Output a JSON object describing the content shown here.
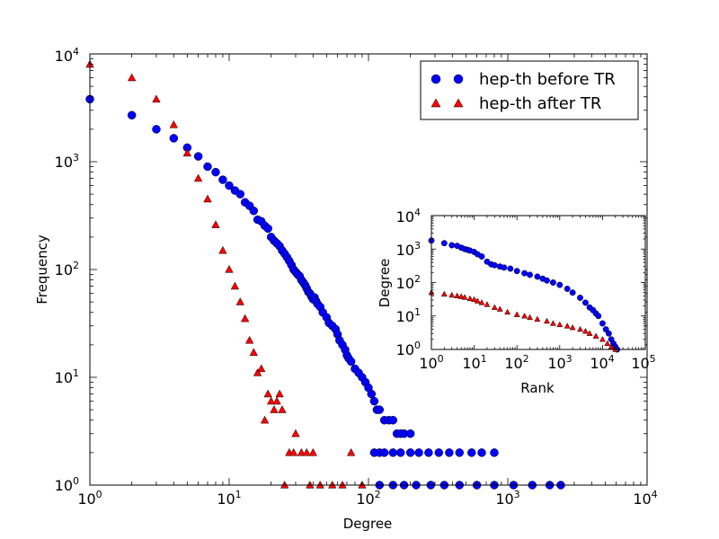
{
  "chart_data": [
    {
      "id": "main",
      "type": "scatter",
      "xscale": "log",
      "yscale": "log",
      "xlim": [
        1,
        10000
      ],
      "ylim": [
        1,
        10000
      ],
      "xlabel": "Degree",
      "ylabel": "Frequency",
      "xticks": [
        {
          "base": "10",
          "exp": "0"
        },
        {
          "base": "10",
          "exp": "1"
        },
        {
          "base": "10",
          "exp": "2"
        },
        {
          "base": "10",
          "exp": "3"
        },
        {
          "base": "10",
          "exp": "4"
        }
      ],
      "yticks": [
        {
          "base": "10",
          "exp": "0"
        },
        {
          "base": "10",
          "exp": "1"
        },
        {
          "base": "10",
          "exp": "2"
        },
        {
          "base": "10",
          "exp": "3"
        },
        {
          "base": "10",
          "exp": "4"
        }
      ],
      "legend": {
        "placement": "top-right",
        "entries": [
          "hep-th before TR",
          "hep-th after TR"
        ]
      },
      "series": [
        {
          "name": "hep-th before TR",
          "marker": "circle",
          "color": "#0000ff",
          "points": [
            [
              1,
              3800
            ],
            [
              2,
              2700
            ],
            [
              3,
              2000
            ],
            [
              4,
              1650
            ],
            [
              5,
              1350
            ],
            [
              6,
              1120
            ],
            [
              7,
              900
            ],
            [
              8,
              800
            ],
            [
              9,
              680
            ],
            [
              10,
              600
            ],
            [
              11,
              540
            ],
            [
              12,
              500
            ],
            [
              13,
              420
            ],
            [
              14,
              390
            ],
            [
              15,
              350
            ],
            [
              16,
              290
            ],
            [
              17,
              280
            ],
            [
              18,
              255
            ],
            [
              19,
              240
            ],
            [
              20,
              200
            ],
            [
              21,
              185
            ],
            [
              22,
              175
            ],
            [
              23,
              165
            ],
            [
              24,
              150
            ],
            [
              25,
              140
            ],
            [
              26,
              130
            ],
            [
              27,
              120
            ],
            [
              28,
              110
            ],
            [
              29,
              100
            ],
            [
              30,
              95
            ],
            [
              31,
              90
            ],
            [
              32,
              87
            ],
            [
              33,
              80
            ],
            [
              34,
              76
            ],
            [
              35,
              72
            ],
            [
              36,
              67
            ],
            [
              37,
              62
            ],
            [
              38,
              60
            ],
            [
              39,
              56
            ],
            [
              40,
              53
            ],
            [
              41,
              55
            ],
            [
              42,
              51
            ],
            [
              43,
              48
            ],
            [
              45,
              45
            ],
            [
              47,
              40
            ],
            [
              50,
              36
            ],
            [
              52,
              32
            ],
            [
              55,
              30
            ],
            [
              58,
              28
            ],
            [
              60,
              25
            ],
            [
              62,
              22
            ],
            [
              65,
              20
            ],
            [
              68,
              18
            ],
            [
              70,
              16
            ],
            [
              72,
              15
            ],
            [
              75,
              14
            ],
            [
              80,
              12
            ],
            [
              85,
              11
            ],
            [
              90,
              10
            ],
            [
              95,
              9
            ],
            [
              100,
              8
            ],
            [
              105,
              7
            ],
            [
              110,
              6
            ],
            [
              115,
              5
            ],
            [
              120,
              5
            ],
            [
              130,
              4
            ],
            [
              140,
              4
            ],
            [
              150,
              4
            ],
            [
              160,
              3
            ],
            [
              170,
              3
            ],
            [
              180,
              3
            ],
            [
              200,
              3
            ],
            [
              110,
              2
            ],
            [
              120,
              2
            ],
            [
              130,
              2
            ],
            [
              150,
              2
            ],
            [
              170,
              2
            ],
            [
              200,
              2
            ],
            [
              230,
              2
            ],
            [
              270,
              2
            ],
            [
              320,
              2
            ],
            [
              380,
              2
            ],
            [
              450,
              2
            ],
            [
              550,
              2
            ],
            [
              650,
              2
            ],
            [
              800,
              2
            ],
            [
              120,
              1
            ],
            [
              150,
              1
            ],
            [
              180,
              1
            ],
            [
              220,
              1
            ],
            [
              280,
              1
            ],
            [
              350,
              1
            ],
            [
              450,
              1
            ],
            [
              600,
              1
            ],
            [
              800,
              1
            ],
            [
              1100,
              1
            ],
            [
              1500,
              1
            ],
            [
              2000,
              1
            ],
            [
              2400,
              1
            ]
          ]
        },
        {
          "name": "hep-th after TR",
          "marker": "triangle",
          "color": "#ff0000",
          "points": [
            [
              1,
              8000
            ],
            [
              2,
              6000
            ],
            [
              3,
              3800
            ],
            [
              4,
              2200
            ],
            [
              5,
              1200
            ],
            [
              6,
              700
            ],
            [
              7,
              450
            ],
            [
              8,
              260
            ],
            [
              9,
              150
            ],
            [
              10,
              100
            ],
            [
              11,
              70
            ],
            [
              12,
              50
            ],
            [
              13,
              35
            ],
            [
              14,
              22
            ],
            [
              15,
              17
            ],
            [
              16,
              11
            ],
            [
              17,
              12
            ],
            [
              18,
              4
            ],
            [
              19,
              7
            ],
            [
              20,
              6
            ],
            [
              21,
              5
            ],
            [
              22,
              6
            ],
            [
              23,
              7
            ],
            [
              24,
              5
            ],
            [
              25,
              1
            ],
            [
              27,
              2
            ],
            [
              29,
              2
            ],
            [
              30,
              3
            ],
            [
              33,
              2
            ],
            [
              36,
              2
            ],
            [
              38,
              1
            ],
            [
              40,
              2
            ],
            [
              45,
              1
            ],
            [
              55,
              1
            ],
            [
              65,
              1
            ],
            [
              75,
              2
            ],
            [
              90,
              1
            ]
          ]
        }
      ]
    },
    {
      "id": "inset",
      "type": "scatter",
      "xscale": "log",
      "yscale": "log",
      "xlim": [
        1,
        100000
      ],
      "ylim": [
        1,
        10000
      ],
      "xlabel": "Rank",
      "ylabel": "Degree",
      "xticks": [
        {
          "base": "10",
          "exp": "0"
        },
        {
          "base": "10",
          "exp": "1"
        },
        {
          "base": "10",
          "exp": "2"
        },
        {
          "base": "10",
          "exp": "3"
        },
        {
          "base": "10",
          "exp": "4"
        },
        {
          "base": "10",
          "exp": "5"
        }
      ],
      "yticks": [
        {
          "base": "10",
          "exp": "0"
        },
        {
          "base": "10",
          "exp": "1"
        },
        {
          "base": "10",
          "exp": "2"
        },
        {
          "base": "10",
          "exp": "3"
        },
        {
          "base": "10",
          "exp": "4"
        }
      ],
      "series": [
        {
          "name": "hep-th before TR",
          "marker": "circle",
          "color": "#0000ff",
          "points": [
            [
              1,
              1800
            ],
            [
              2,
              1500
            ],
            [
              3,
              1300
            ],
            [
              4,
              1250
            ],
            [
              5,
              1100
            ],
            [
              6,
              1000
            ],
            [
              7,
              950
            ],
            [
              8,
              900
            ],
            [
              10,
              820
            ],
            [
              12,
              700
            ],
            [
              15,
              600
            ],
            [
              20,
              420
            ],
            [
              25,
              350
            ],
            [
              30,
              330
            ],
            [
              40,
              300
            ],
            [
              50,
              280
            ],
            [
              70,
              260
            ],
            [
              100,
              220
            ],
            [
              150,
              190
            ],
            [
              200,
              170
            ],
            [
              300,
              150
            ],
            [
              400,
              130
            ],
            [
              500,
              115
            ],
            [
              700,
              100
            ],
            [
              1000,
              85
            ],
            [
              1500,
              65
            ],
            [
              2000,
              50
            ],
            [
              3000,
              35
            ],
            [
              4000,
              25
            ],
            [
              5000,
              18
            ],
            [
              6000,
              15
            ],
            [
              7000,
              12
            ],
            [
              8000,
              10
            ],
            [
              10000,
              6
            ],
            [
              12000,
              4
            ],
            [
              14000,
              3
            ],
            [
              16000,
              2
            ],
            [
              18000,
              1.5
            ],
            [
              20000,
              1.2
            ],
            [
              22000,
              1
            ]
          ]
        },
        {
          "name": "hep-th after TR",
          "marker": "triangle",
          "color": "#ff0000",
          "points": [
            [
              1,
              50
            ],
            [
              2,
              45
            ],
            [
              3,
              42
            ],
            [
              4,
              40
            ],
            [
              5,
              38
            ],
            [
              6,
              36
            ],
            [
              8,
              33
            ],
            [
              10,
              31
            ],
            [
              12,
              28
            ],
            [
              15,
              25
            ],
            [
              20,
              22
            ],
            [
              30,
              18
            ],
            [
              40,
              16
            ],
            [
              60,
              13
            ],
            [
              100,
              11
            ],
            [
              150,
              10
            ],
            [
              200,
              9
            ],
            [
              300,
              8
            ],
            [
              500,
              7
            ],
            [
              700,
              6
            ],
            [
              1000,
              5.5
            ],
            [
              1500,
              5
            ],
            [
              2000,
              4.5
            ],
            [
              3000,
              4
            ],
            [
              4000,
              3.5
            ],
            [
              5000,
              3
            ],
            [
              7000,
              2.5
            ],
            [
              10000,
              2
            ],
            [
              13000,
              1.5
            ],
            [
              16000,
              1.2
            ],
            [
              20000,
              1
            ]
          ]
        }
      ]
    }
  ]
}
